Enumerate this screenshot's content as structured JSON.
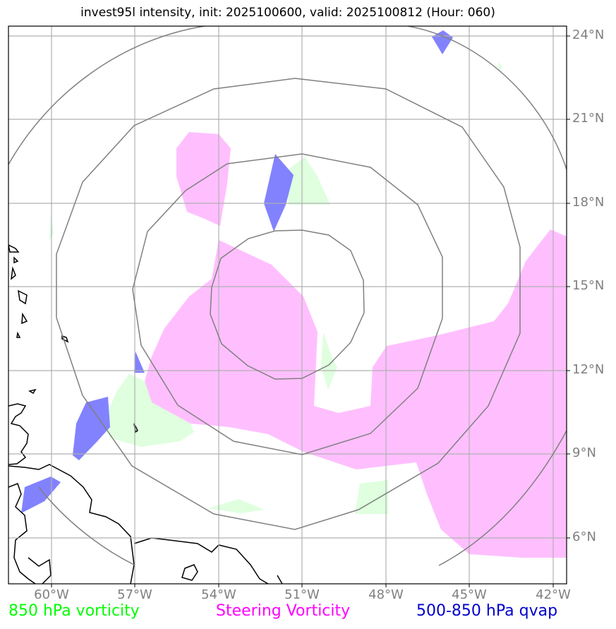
{
  "title": "invest95l intensity, init: 2025100600, valid: 2025100812 (Hour: 060)",
  "lat_labels": [
    "24°N",
    "21°N",
    "18°N",
    "15°N",
    "12°N",
    "9°N",
    "6°N"
  ],
  "lon_labels": [
    "60°W",
    "57°W",
    "54°W",
    "51°W",
    "48°W",
    "45°W",
    "42°W"
  ],
  "legend": [
    {
      "label": "850 hPa vorticity",
      "color": "#00ff00"
    },
    {
      "label": "Steering Vorticity",
      "color": "#ff00ff"
    },
    {
      "label": "500-850 hPa qvap",
      "color": "#0000cc"
    }
  ],
  "fill_colors": {
    "steering_vorticity": "#ffbfff",
    "vorticity_850": "#dcffdc",
    "qvap": "#7b7bff"
  }
}
